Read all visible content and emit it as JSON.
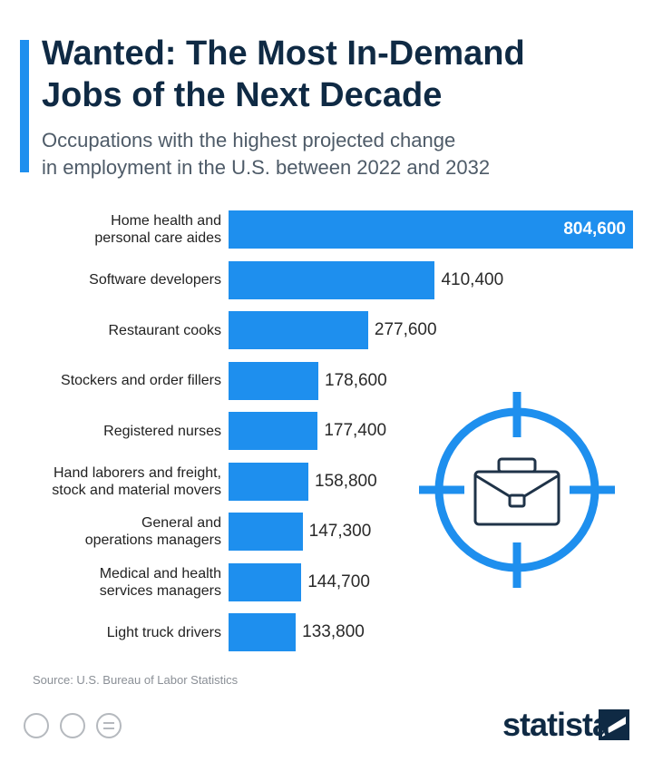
{
  "chart_data": {
    "type": "bar",
    "orientation": "horizontal",
    "title": "Wanted: The Most In-Demand\nJobs of the Next Decade",
    "subtitle": "Occupations with the highest projected change\nin employment in the U.S. between 2022 and 2032",
    "categories": [
      "Home health and\npersonal care aides",
      "Software developers",
      "Restaurant cooks",
      "Stockers and order fillers",
      "Registered nurses",
      "Hand laborers and freight,\nstock and material movers",
      "General and\noperations managers",
      "Medical and health\nservices managers",
      "Light truck drivers"
    ],
    "values": [
      804600,
      410400,
      277600,
      178600,
      177400,
      158800,
      147300,
      144700,
      133800
    ],
    "value_labels": [
      "804,600",
      "410,400",
      "277,600",
      "178,600",
      "177,400",
      "158,800",
      "147,300",
      "144,700",
      "133,800"
    ],
    "color": "#1e8fee",
    "source": "Source: U.S. Bureau of Labor Statistics",
    "logo": "statista"
  }
}
